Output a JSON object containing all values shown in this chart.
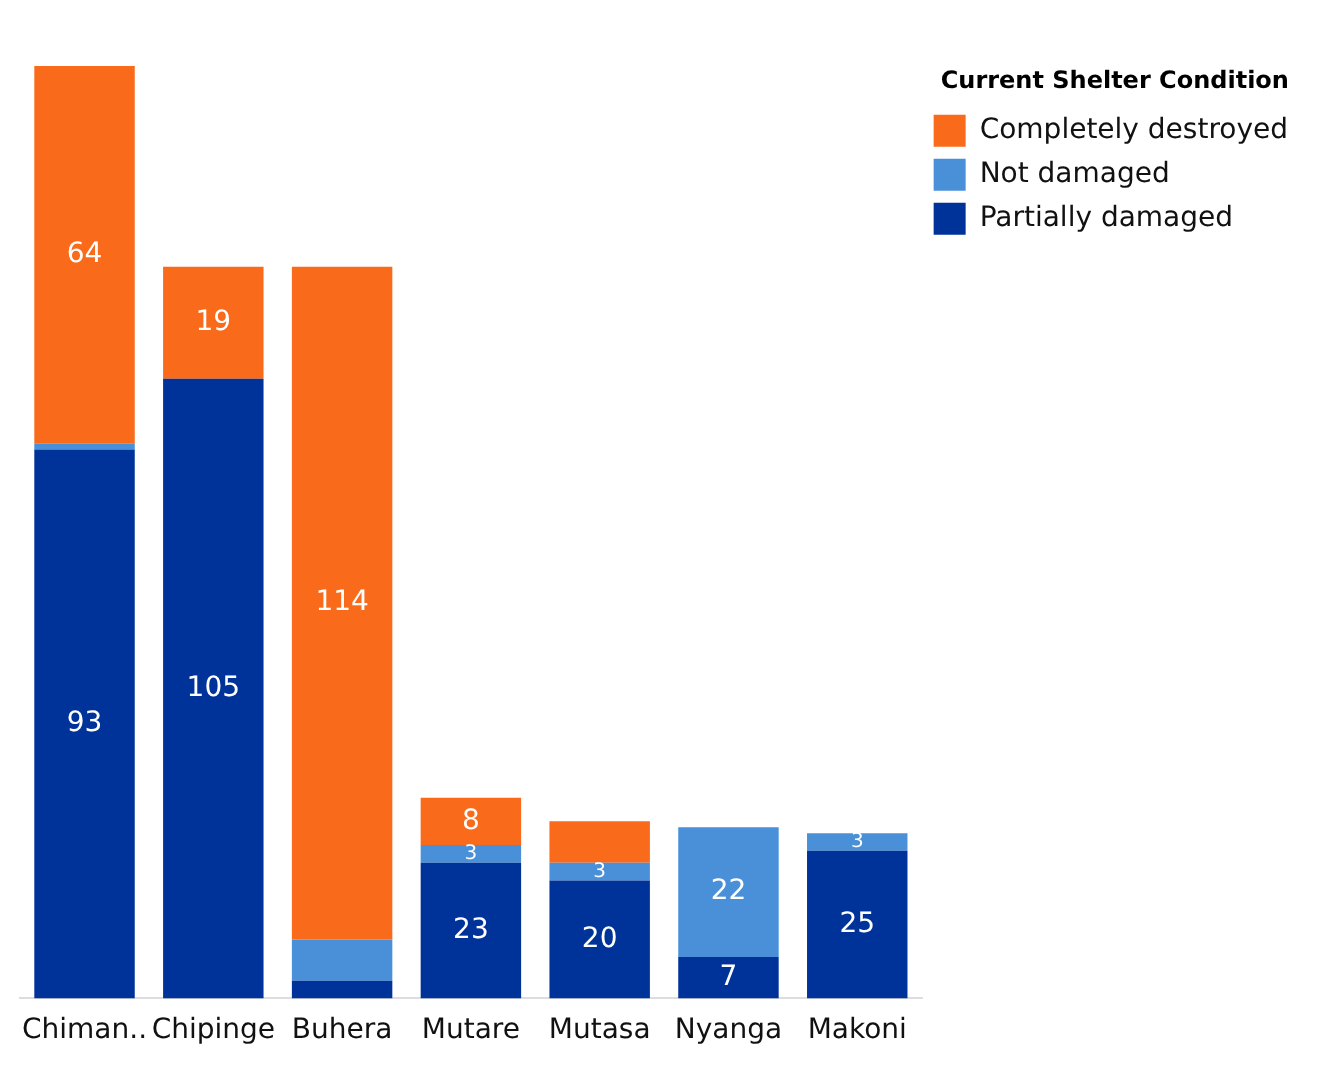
{
  "chart_data": {
    "type": "bar",
    "stacked": true,
    "categories": [
      "Chiman..",
      "Chipinge",
      "Buhera",
      "Mutare",
      "Mutasa",
      "Nyanga",
      "Makoni"
    ],
    "series": [
      {
        "name": "Partially damaged",
        "color": "#00339a",
        "values": [
          93,
          105,
          3,
          23,
          20,
          7,
          25
        ],
        "value_labels": [
          "93",
          "105",
          null,
          "23",
          "20",
          "7",
          "25"
        ]
      },
      {
        "name": "Not damaged",
        "color": "#4a90d9",
        "values": [
          1,
          0,
          7,
          3,
          3,
          22,
          3
        ],
        "value_labels": [
          null,
          null,
          null,
          "3",
          "3",
          "22",
          "3"
        ]
      },
      {
        "name": "Completely destroyed",
        "color": "#f96a1b",
        "values": [
          64,
          19,
          114,
          8,
          7,
          0,
          0
        ],
        "value_labels": [
          "64",
          "19",
          "114",
          "8",
          null,
          null,
          null
        ]
      }
    ],
    "ylim": [
      0,
      158
    ],
    "tick_labels": "x",
    "grid": false,
    "legend": "top right",
    "legend_title": "Current Shelter Condition"
  }
}
